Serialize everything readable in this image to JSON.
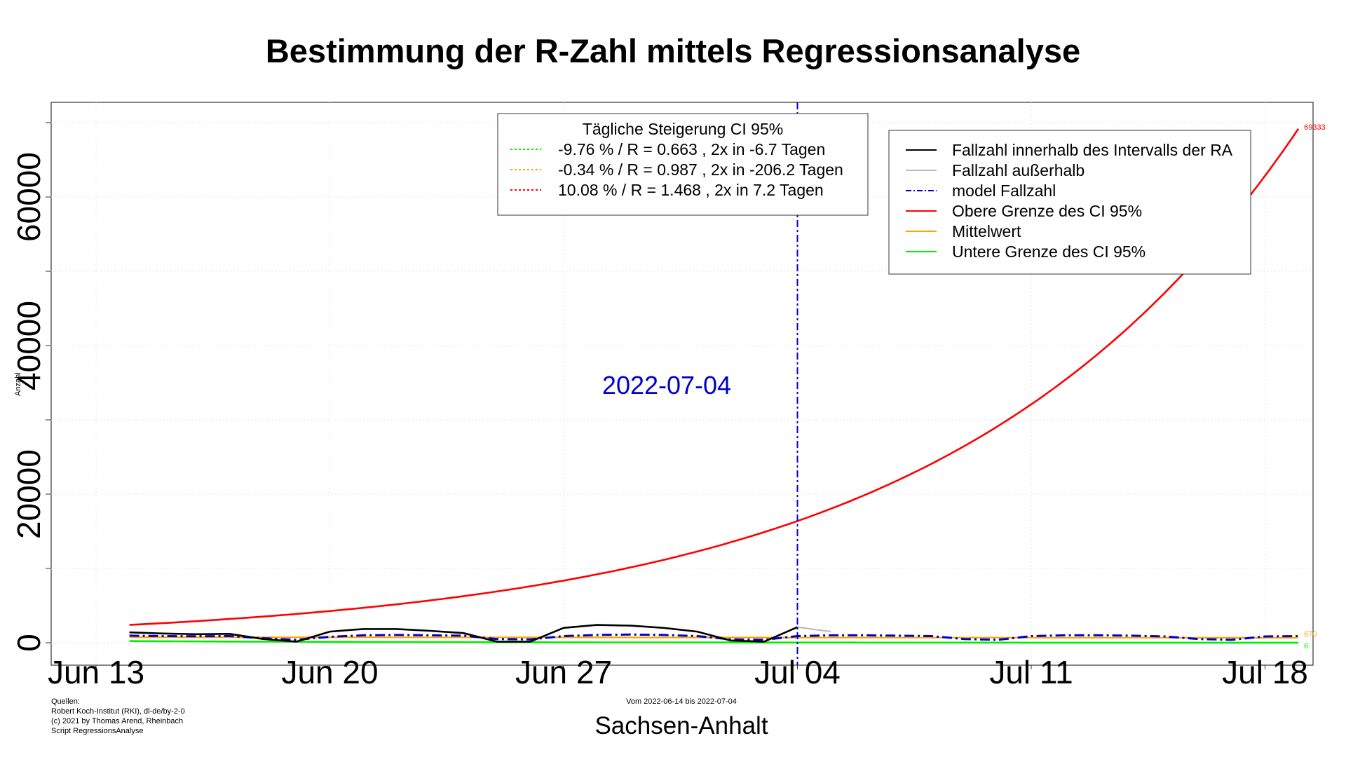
{
  "chart_data": {
    "type": "line",
    "title": "Bestimmung der R-Zahl mittels Regressionsanalyse",
    "xlabel": "Sachsen-Anhalt",
    "ylabel": "Anzahl",
    "subtitle": "Vom 2022-06-14 bis 2022-07-04",
    "sources": [
      "Quellen:",
      "Robert Koch-Institut (RKI), dl-de/by-2-0",
      "(c) 2021 by Thomas Arend, Rheinbach",
      "Script RegressionsAnalyse"
    ],
    "x_ticks": [
      "Jun 13",
      "Jun 20",
      "Jun 27",
      "Jul 04",
      "Jul 11",
      "Jul 18"
    ],
    "y_ticks": [
      "0",
      "20000",
      "40000",
      "60000"
    ],
    "ylim": [
      0,
      70000
    ],
    "x_range": [
      "2022-06-13",
      "2022-07-20"
    ],
    "grid": true,
    "vline": {
      "date": "2022-07-04",
      "label": "2022-07-04",
      "color": "#0000cc"
    },
    "colors": {
      "inside": "#000000",
      "outside": "#bbbbbb",
      "model": "#0000cc",
      "upper": "#ff0000",
      "mean": "#ffa500",
      "lower": "#00ee00"
    },
    "series": [
      {
        "name": "Fallzahl innerhalb des Intervalls der RA",
        "dates": [
          "2022-06-14",
          "2022-06-15",
          "2022-06-16",
          "2022-06-17",
          "2022-06-18",
          "2022-06-19",
          "2022-06-20",
          "2022-06-21",
          "2022-06-22",
          "2022-06-23",
          "2022-06-24",
          "2022-06-25",
          "2022-06-26",
          "2022-06-27",
          "2022-06-28",
          "2022-06-29",
          "2022-06-30",
          "2022-07-01",
          "2022-07-02",
          "2022-07-03",
          "2022-07-04"
        ],
        "values": [
          1400,
          1250,
          1150,
          1200,
          500,
          150,
          1500,
          1850,
          1850,
          1600,
          1300,
          150,
          150,
          2000,
          2400,
          2300,
          2000,
          1500,
          300,
          150,
          2100
        ]
      },
      {
        "name": "Fallzahl außerhalb",
        "dates": [
          "2022-07-04",
          "2022-07-05"
        ],
        "values": [
          2100,
          1500
        ]
      },
      {
        "name": "model Fallzahl",
        "dates": [
          "2022-06-14",
          "2022-06-15",
          "2022-06-16",
          "2022-06-17",
          "2022-06-18",
          "2022-06-19",
          "2022-06-20",
          "2022-06-21",
          "2022-06-22",
          "2022-06-23",
          "2022-06-24",
          "2022-06-25",
          "2022-06-26",
          "2022-06-27",
          "2022-06-28",
          "2022-06-29",
          "2022-06-30",
          "2022-07-01",
          "2022-07-02",
          "2022-07-03",
          "2022-07-04",
          "2022-07-05",
          "2022-07-06",
          "2022-07-07",
          "2022-07-08",
          "2022-07-09",
          "2022-07-10",
          "2022-07-11",
          "2022-07-12",
          "2022-07-13",
          "2022-07-14",
          "2022-07-15",
          "2022-07-16",
          "2022-07-17",
          "2022-07-18",
          "2022-07-19"
        ],
        "values": [
          950,
          900,
          880,
          900,
          600,
          400,
          800,
          1000,
          1050,
          1000,
          950,
          500,
          450,
          900,
          1050,
          1100,
          1050,
          900,
          450,
          400,
          900,
          1000,
          1000,
          950,
          900,
          500,
          400,
          900,
          1000,
          1000,
          950,
          850,
          500,
          400,
          850,
          900
        ]
      },
      {
        "name": "Obere Grenze des CI 95%",
        "start": "2022-06-14",
        "end": "2022-07-19",
        "start_value": 2400,
        "daily_growth": 0.1008,
        "end_value": 69333
      },
      {
        "name": "Mittelwert",
        "start": "2022-06-14",
        "end": "2022-07-19",
        "start_value": 750,
        "daily_growth": -0.0034,
        "end_value": 670
      },
      {
        "name": "Untere Grenze des CI 95%",
        "start": "2022-06-14",
        "end": "2022-07-19",
        "start_value": 220,
        "daily_growth": -0.0976,
        "end_value": 6
      }
    ],
    "end_labels": [
      "69333",
      "670",
      "6"
    ],
    "ci_legend": {
      "title": "Tägliche Steigerung CI  95%",
      "entries": [
        {
          "text": "-9.76 % / R = 0.663 , 2x in -6.7 Tagen",
          "color": "#00ee00"
        },
        {
          "text": "-0.34 % / R = 0.987 , 2x in -206.2 Tagen",
          "color": "#ffa500"
        },
        {
          "text": "10.08 % / R = 1.468 , 2x in 7.2 Tagen",
          "color": "#ff0000"
        }
      ]
    },
    "legend": {
      "position": "top-right",
      "entries": [
        {
          "text": "Fallzahl innerhalb des Intervalls der RA",
          "color": "#000000",
          "style": "solid"
        },
        {
          "text": "Fallzahl außerhalb",
          "color": "#bbbbbb",
          "style": "solid"
        },
        {
          "text": "model Fallzahl",
          "color": "#0000cc",
          "style": "dashdot"
        },
        {
          "text": "Obere Grenze des CI 95%",
          "color": "#ff0000",
          "style": "solid"
        },
        {
          "text": "Mittelwert",
          "color": "#ffa500",
          "style": "solid"
        },
        {
          "text": "Untere Grenze des CI 95%",
          "color": "#00ee00",
          "style": "solid"
        }
      ]
    }
  }
}
